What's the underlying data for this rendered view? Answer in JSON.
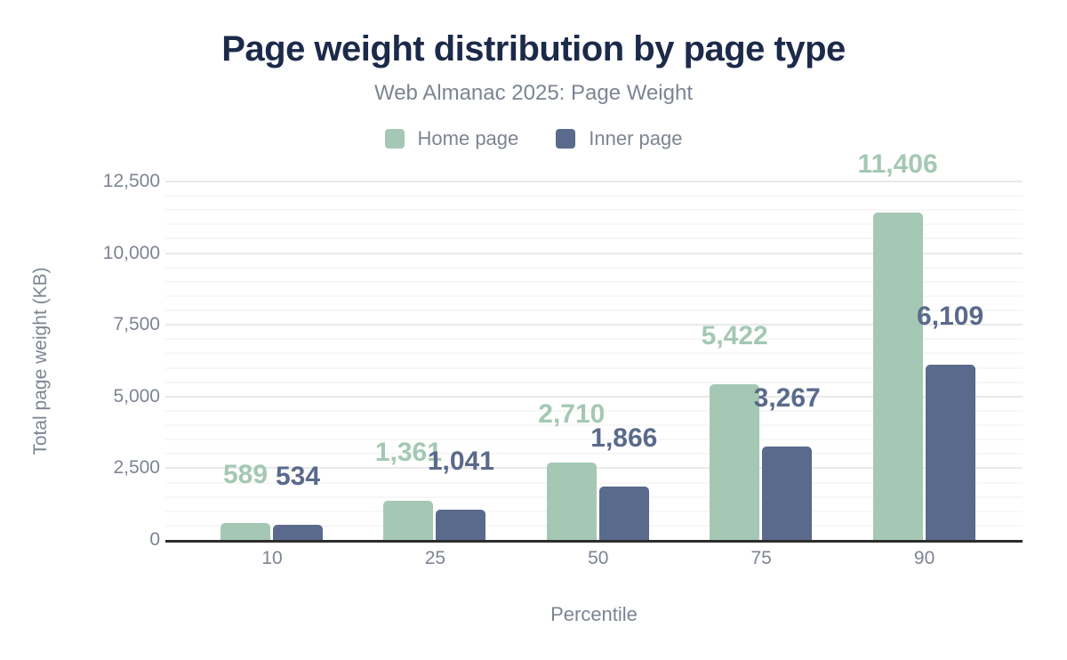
{
  "chart_data": {
    "type": "bar",
    "title": "Page weight distribution by page type",
    "subtitle": "Web Almanac 2025: Page Weight",
    "xlabel": "Percentile",
    "ylabel": "Total page weight (KB)",
    "categories": [
      "10",
      "25",
      "50",
      "75",
      "90"
    ],
    "series": [
      {
        "name": "Home page",
        "color": "#a4c8b4",
        "values": [
          589,
          1361,
          2710,
          5422,
          11406
        ]
      },
      {
        "name": "Inner page",
        "color": "#5a6a8c",
        "values": [
          534,
          1041,
          1866,
          3267,
          6109
        ]
      }
    ],
    "ylim": [
      0,
      12500
    ],
    "ytick_labels": [
      "0",
      "2,500",
      "5,000",
      "7,500",
      "10,000",
      "12,500"
    ],
    "ytick_step": 2500,
    "minor_gridline_step": 500,
    "grid": true,
    "legend_position": "top",
    "value_labels_shown": true
  },
  "colors": {
    "title": "#1c2a4a",
    "axis_text": "#7d8592",
    "home_page": "#a4c8b4",
    "inner_page": "#5a6a8c",
    "axis_line": "#2d2d2d",
    "major_gridline": "#e9e9e9",
    "minor_gridline": "#f7f7f7",
    "background": "#ffffff"
  }
}
